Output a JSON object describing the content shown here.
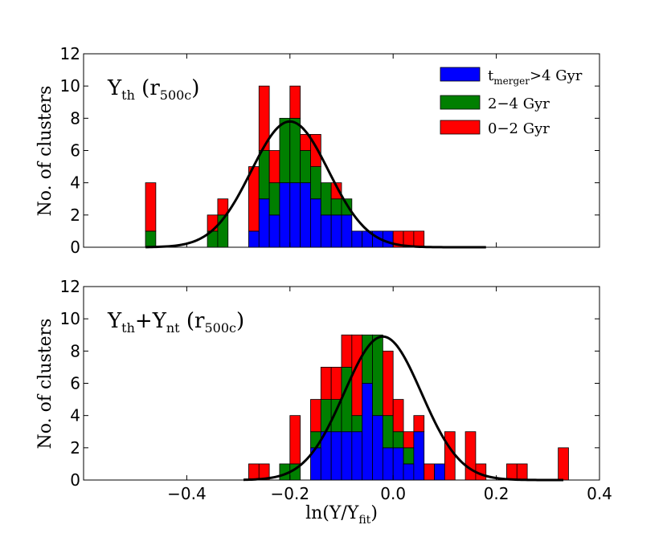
{
  "chart_data": [
    {
      "type": "bar",
      "stacked": true,
      "panel": "top",
      "annotation": {
        "base": "Y",
        "sub": "th",
        "paren_base": "r",
        "paren_sub": "500c"
      },
      "ylabel": "No. of clusters",
      "xlim": [
        -0.6,
        0.4
      ],
      "ylim": [
        0,
        12
      ],
      "yticks": [
        "0",
        "2",
        "4",
        "6",
        "8",
        "10",
        "12"
      ],
      "bin_width": 0.02,
      "bin_starts": [
        -0.48,
        -0.36,
        -0.34,
        -0.28,
        -0.26,
        -0.24,
        -0.22,
        -0.2,
        -0.18,
        -0.16,
        -0.14,
        -0.12,
        -0.1,
        -0.08,
        -0.06,
        -0.04,
        -0.02,
        0.0,
        0.02,
        0.04
      ],
      "series": [
        {
          "name": "t_merger>4 Gyr",
          "color": "#0000ff",
          "values": [
            0,
            0,
            0,
            1,
            3,
            2,
            4,
            4,
            4,
            3,
            2,
            2,
            2,
            1,
            1,
            1,
            1,
            0,
            0,
            0
          ]
        },
        {
          "name": "2−4 Gyr",
          "color": "#007f00",
          "values": [
            1,
            1,
            2,
            0,
            3,
            2,
            4,
            4,
            2,
            2,
            2,
            1,
            1,
            0,
            0,
            0,
            0,
            0,
            0,
            0
          ]
        },
        {
          "name": "0−2 Gyr",
          "color": "#ff0000",
          "values": [
            3,
            1,
            1,
            4,
            4,
            2,
            0,
            2,
            1,
            2,
            0,
            1,
            0,
            0,
            0,
            0,
            0,
            1,
            1,
            1
          ]
        }
      ],
      "fit_curve": {
        "type": "gaussian",
        "mean": -0.2,
        "sigma": 0.075,
        "amplitude": 7.8,
        "x_range": [
          -0.48,
          0.18
        ]
      },
      "legend": {
        "placement": "top-right",
        "entries": [
          {
            "main": "t",
            "sub": "merger",
            "rest": ">4 Gyr",
            "color": "#0000ff"
          },
          {
            "main": "2−4 Gyr",
            "sub": "",
            "rest": "",
            "color": "#007f00"
          },
          {
            "main": "0−2 Gyr",
            "sub": "",
            "rest": "",
            "color": "#ff0000"
          }
        ]
      }
    },
    {
      "type": "bar",
      "stacked": true,
      "panel": "bottom",
      "annotation": {
        "base1": "Y",
        "sub1": "th",
        "plus": "+",
        "base2": "Y",
        "sub2": "nt",
        "paren_base": "r",
        "paren_sub": "500c"
      },
      "ylabel": "No. of clusters",
      "xlabel": {
        "base": "ln(Y/Y",
        "sub": "fit",
        "close": ")"
      },
      "xlim": [
        -0.6,
        0.4
      ],
      "ylim": [
        0,
        12
      ],
      "xticks": [
        "−0.4",
        "−0.2",
        "0.0",
        "0.2",
        "0.4"
      ],
      "xtick_values": [
        -0.4,
        -0.2,
        0.0,
        0.2,
        0.4
      ],
      "yticks": [
        "0",
        "2",
        "4",
        "6",
        "8",
        "10",
        "12"
      ],
      "bin_width": 0.02,
      "bin_starts": [
        -0.28,
        -0.26,
        -0.22,
        -0.2,
        -0.16,
        -0.14,
        -0.12,
        -0.1,
        -0.08,
        -0.06,
        -0.04,
        -0.02,
        0.0,
        0.02,
        0.04,
        0.06,
        0.08,
        0.1,
        0.14,
        0.16,
        0.22,
        0.24,
        0.32
      ],
      "series": [
        {
          "name": "t_merger>4 Gyr",
          "color": "#0000ff",
          "values": [
            0,
            0,
            0,
            0,
            2,
            3,
            3,
            3,
            3,
            6,
            4,
            2,
            2,
            1,
            3,
            0,
            1,
            0,
            0,
            0,
            0,
            0,
            0
          ]
        },
        {
          "name": "2−4 Gyr",
          "color": "#007f00",
          "values": [
            0,
            0,
            1,
            1,
            1,
            2,
            2,
            4,
            1,
            3,
            5,
            2,
            1,
            1,
            0,
            0,
            0,
            0,
            0,
            0,
            0,
            0,
            0
          ]
        },
        {
          "name": "0−2 Gyr",
          "color": "#ff0000",
          "values": [
            1,
            1,
            0,
            3,
            2,
            2,
            2,
            2,
            5,
            0,
            0,
            4,
            2,
            1,
            1,
            1,
            0,
            3,
            3,
            1,
            1,
            1,
            2
          ]
        }
      ],
      "fit_curve": {
        "type": "gaussian",
        "mean": -0.02,
        "sigma": 0.075,
        "amplitude": 8.9,
        "x_range": [
          -0.29,
          0.33
        ]
      }
    }
  ]
}
